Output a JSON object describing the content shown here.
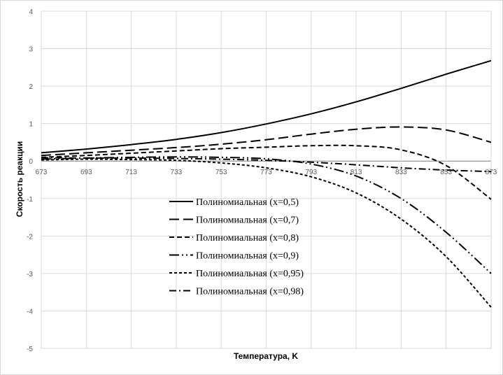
{
  "chart_data": {
    "type": "line",
    "title": "",
    "xlabel": "Температура, K",
    "ylabel": "Скорость реакции",
    "xlim": [
      673,
      873
    ],
    "ylim": [
      -5,
      4
    ],
    "x_ticks": [
      "673",
      "693",
      "713",
      "733",
      "753",
      "773",
      "793",
      "813",
      "833",
      "853",
      "873"
    ],
    "y_ticks": [
      "4",
      "3",
      "2",
      "1",
      "0",
      "-1",
      "-2",
      "-3",
      "-4",
      "-5"
    ],
    "grid": "on",
    "legend_position": "center",
    "x": [
      673,
      693,
      713,
      733,
      753,
      773,
      793,
      813,
      833,
      853,
      873
    ],
    "series": [
      {
        "name": "Полиномиальная (x=0,5)",
        "style": "solid",
        "values": [
          0.22,
          0.32,
          0.44,
          0.58,
          0.76,
          0.99,
          1.26,
          1.58,
          1.94,
          2.32,
          2.68
        ]
      },
      {
        "name": "Полиномиальная (x=0,7)",
        "style": "longdash",
        "values": [
          0.15,
          0.22,
          0.29,
          0.36,
          0.45,
          0.57,
          0.72,
          0.85,
          0.91,
          0.83,
          0.5
        ]
      },
      {
        "name": "Полиномиальная (x=0,8)",
        "style": "dash",
        "values": [
          0.1,
          0.15,
          0.21,
          0.27,
          0.33,
          0.37,
          0.41,
          0.41,
          0.3,
          -0.12,
          -1.02
        ]
      },
      {
        "name": "Полиномиальная (x=0,9)",
        "style": "dashdotdot",
        "values": [
          0.05,
          0.08,
          0.1,
          0.11,
          0.1,
          0.06,
          -0.08,
          -0.4,
          -1.0,
          -1.9,
          -3.0
        ]
      },
      {
        "name": "Полиномиальная (x=0,95)",
        "style": "shortdash",
        "values": [
          0.03,
          0.05,
          0.04,
          0.02,
          -0.05,
          -0.18,
          -0.42,
          -0.85,
          -1.55,
          -2.55,
          -3.9
        ]
      },
      {
        "name": "Полиномиальная (x=0,98)",
        "style": "dashdot",
        "values": [
          0.09,
          0.08,
          0.08,
          0.07,
          0.05,
          0.02,
          -0.03,
          -0.1,
          -0.18,
          -0.24,
          -0.28
        ]
      }
    ]
  }
}
